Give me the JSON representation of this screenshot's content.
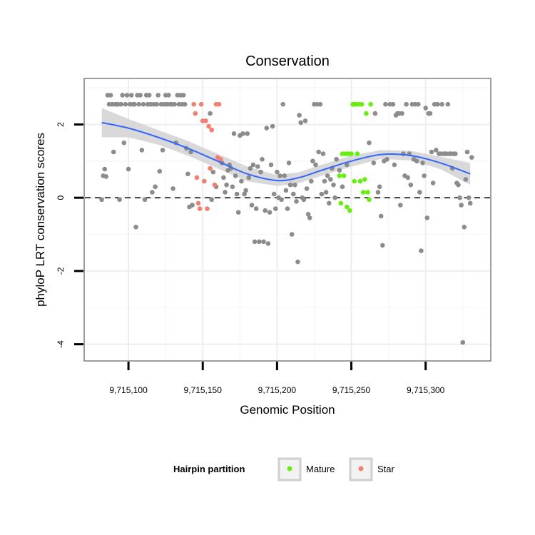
{
  "chart_data": {
    "type": "scatter",
    "title": "Conservation",
    "xlabel": "Genomic Position",
    "ylabel": "phyloP LRT conservation scores",
    "xlim": [
      9715075,
      9715340
    ],
    "ylim": [
      -4.3,
      3.1
    ],
    "x_ticks": [
      9715100,
      9715150,
      9715200,
      9715250,
      9715300
    ],
    "x_tick_labels": [
      "9,715,100",
      "9,715,150",
      "9,715,200",
      "9,715,250",
      "9,715,300"
    ],
    "y_ticks": [
      -4,
      -2,
      0,
      2
    ],
    "y_tick_labels": [
      "-4",
      "-2",
      "0",
      "2"
    ],
    "reference_line": {
      "y": 0,
      "style": "dashed"
    },
    "grid": true,
    "legend": {
      "title": "Hairpin partition",
      "position": "bottom",
      "entries": [
        {
          "label": "Mature",
          "color": "#66ee11"
        },
        {
          "label": "Star",
          "color": "#f08070"
        }
      ]
    },
    "colors": {
      "other": "#8c8c8c",
      "mature": "#66ee11",
      "star": "#f08070",
      "smooth": "#3366ff",
      "ribbon": "#d2d2d2"
    },
    "smooth": {
      "x": [
        9715082,
        9715100,
        9715120,
        9715140,
        9715160,
        9715180,
        9715200,
        9715215,
        9715230,
        9715250,
        9715270,
        9715290,
        9715310,
        9715330
      ],
      "y": [
        2.05,
        1.9,
        1.65,
        1.35,
        1.0,
        0.65,
        0.47,
        0.55,
        0.75,
        1.0,
        1.18,
        1.15,
        0.95,
        0.65
      ],
      "upper": [
        2.45,
        2.15,
        1.85,
        1.55,
        1.2,
        0.85,
        0.62,
        0.7,
        0.9,
        1.15,
        1.3,
        1.28,
        1.12,
        0.95
      ],
      "lower": [
        1.65,
        1.65,
        1.45,
        1.15,
        0.8,
        0.45,
        0.32,
        0.4,
        0.6,
        0.85,
        1.06,
        1.02,
        0.78,
        0.35
      ]
    },
    "series": [
      {
        "name": "Other",
        "points": [
          [
            9715082,
            -0.05
          ],
          [
            9715083,
            0.6
          ],
          [
            9715084,
            0.78
          ],
          [
            9715085,
            0.58
          ],
          [
            9715086,
            2.8
          ],
          [
            9715087,
            2.55
          ],
          [
            9715088,
            2.8
          ],
          [
            9715089,
            2.55
          ],
          [
            9715090,
            1.25
          ],
          [
            9715091,
            2.55
          ],
          [
            9715092,
            2.55
          ],
          [
            9715093,
            2.55
          ],
          [
            9715094,
            -0.05
          ],
          [
            9715095,
            2.55
          ],
          [
            9715096,
            2.8
          ],
          [
            9715097,
            1.5
          ],
          [
            9715098,
            2.55
          ],
          [
            9715099,
            2.8
          ],
          [
            9715100,
            0.78
          ],
          [
            9715101,
            2.55
          ],
          [
            9715102,
            2.8
          ],
          [
            9715103,
            2.55
          ],
          [
            9715104,
            2.55
          ],
          [
            9715105,
            -0.8
          ],
          [
            9715106,
            2.8
          ],
          [
            9715107,
            2.55
          ],
          [
            9715108,
            2.8
          ],
          [
            9715109,
            1.3
          ],
          [
            9715110,
            2.55
          ],
          [
            9715111,
            -0.05
          ],
          [
            9715112,
            2.8
          ],
          [
            9715113,
            2.55
          ],
          [
            9715114,
            2.8
          ],
          [
            9715115,
            2.55
          ],
          [
            9715116,
            0.15
          ],
          [
            9715117,
            2.55
          ],
          [
            9715118,
            0.3
          ],
          [
            9715119,
            2.55
          ],
          [
            9715120,
            2.8
          ],
          [
            9715121,
            0.72
          ],
          [
            9715122,
            2.55
          ],
          [
            9715123,
            1.3
          ],
          [
            9715124,
            2.55
          ],
          [
            9715125,
            2.8
          ],
          [
            9715126,
            2.55
          ],
          [
            9715127,
            2.8
          ],
          [
            9715128,
            2.55
          ],
          [
            9715129,
            2.55
          ],
          [
            9715130,
            0.25
          ],
          [
            9715131,
            2.55
          ],
          [
            9715132,
            1.5
          ],
          [
            9715133,
            2.8
          ],
          [
            9715134,
            2.55
          ],
          [
            9715135,
            2.8
          ],
          [
            9715136,
            2.55
          ],
          [
            9715137,
            2.8
          ],
          [
            9715138,
            2.55
          ],
          [
            9715139,
            1.35
          ],
          [
            9715140,
            0.65
          ],
          [
            9715141,
            -0.25
          ],
          [
            9715142,
            1.25
          ],
          [
            9715143,
            -0.2
          ],
          [
            9715155,
            2.3
          ],
          [
            9715156,
            -0.05
          ],
          [
            9715157,
            0.7
          ],
          [
            9715159,
            0.3
          ],
          [
            9715163,
            0.95
          ],
          [
            9715164,
            0.55
          ],
          [
            9715165,
            0.15
          ],
          [
            9715166,
            0.35
          ],
          [
            9715167,
            0.75
          ],
          [
            9715168,
            0.9
          ],
          [
            9715169,
            0.8
          ],
          [
            9715170,
            0.3
          ],
          [
            9715171,
            1.75
          ],
          [
            9715172,
            0.6
          ],
          [
            9715173,
            0.1
          ],
          [
            9715174,
            -0.4
          ],
          [
            9715175,
            1.7
          ],
          [
            9715176,
            0.45
          ],
          [
            9715177,
            1.75
          ],
          [
            9715178,
            0.1
          ],
          [
            9715179,
            0.2
          ],
          [
            9715180,
            1.75
          ],
          [
            9715181,
            0.55
          ],
          [
            9715182,
            0.8
          ],
          [
            9715183,
            -0.2
          ],
          [
            9715184,
            0.9
          ],
          [
            9715185,
            -1.2
          ],
          [
            9715186,
            -0.3
          ],
          [
            9715187,
            0.85
          ],
          [
            9715188,
            -1.2
          ],
          [
            9715189,
            0.7
          ],
          [
            9715190,
            1.05
          ],
          [
            9715191,
            -1.2
          ],
          [
            9715192,
            -0.35
          ],
          [
            9715193,
            1.9
          ],
          [
            9715194,
            -1.25
          ],
          [
            9715195,
            -0.4
          ],
          [
            9715196,
            0.9
          ],
          [
            9715197,
            1.95
          ],
          [
            9715198,
            0.1
          ],
          [
            9715199,
            -0.3
          ],
          [
            9715200,
            0.7
          ],
          [
            9715201,
            0.0
          ],
          [
            9715202,
            0.6
          ],
          [
            9715203,
            -0.05
          ],
          [
            9715204,
            2.55
          ],
          [
            9715205,
            0.6
          ],
          [
            9715206,
            0.2
          ],
          [
            9715207,
            -0.3
          ],
          [
            9715208,
            0.95
          ],
          [
            9715209,
            0.35
          ],
          [
            9715210,
            -1.0
          ],
          [
            9715211,
            0.1
          ],
          [
            9715212,
            0.35
          ],
          [
            9715213,
            -0.1
          ],
          [
            9715214,
            -1.75
          ],
          [
            9715215,
            2.25
          ],
          [
            9715216,
            2.05
          ],
          [
            9715217,
            0.0
          ],
          [
            9715218,
            -0.05
          ],
          [
            9715219,
            2.1
          ],
          [
            9715220,
            0.25
          ],
          [
            9715221,
            -0.45
          ],
          [
            9715222,
            -0.55
          ],
          [
            9715223,
            0.45
          ],
          [
            9715224,
            1.0
          ],
          [
            9715225,
            2.55
          ],
          [
            9715226,
            0.9
          ],
          [
            9715227,
            2.55
          ],
          [
            9715228,
            1.25
          ],
          [
            9715229,
            2.55
          ],
          [
            9715230,
            0.1
          ],
          [
            9715231,
            1.2
          ],
          [
            9715232,
            0.45
          ],
          [
            9715233,
            0.15
          ],
          [
            9715234,
            0.6
          ],
          [
            9715235,
            -0.15
          ],
          [
            9715236,
            0.5
          ],
          [
            9715237,
            0.8
          ],
          [
            9715238,
            0.35
          ],
          [
            9715239,
            0.0
          ],
          [
            9715240,
            1.05
          ],
          [
            9715242,
            0.75
          ],
          [
            9715244,
            0.3
          ],
          [
            9715247,
            0.9
          ],
          [
            9715252,
            2.55
          ],
          [
            9715262,
            1.5
          ],
          [
            9715265,
            0.95
          ],
          [
            9715266,
            2.3
          ],
          [
            9715268,
            0.15
          ],
          [
            9715269,
            0.3
          ],
          [
            9715270,
            -0.5
          ],
          [
            9715271,
            -1.3
          ],
          [
            9715272,
            1.0
          ],
          [
            9715273,
            2.55
          ],
          [
            9715274,
            1.05
          ],
          [
            9715276,
            2.55
          ],
          [
            9715278,
            2.55
          ],
          [
            9715279,
            0.9
          ],
          [
            9715280,
            2.25
          ],
          [
            9715281,
            2.3
          ],
          [
            9715282,
            2.3
          ],
          [
            9715283,
            -0.2
          ],
          [
            9715284,
            2.3
          ],
          [
            9715285,
            1.2
          ],
          [
            9715286,
            0.6
          ],
          [
            9715287,
            2.55
          ],
          [
            9715288,
            0.55
          ],
          [
            9715289,
            1.2
          ],
          [
            9715290,
            0.35
          ],
          [
            9715291,
            2.55
          ],
          [
            9715292,
            1.05
          ],
          [
            9715293,
            2.55
          ],
          [
            9715294,
            1.0
          ],
          [
            9715295,
            2.55
          ],
          [
            9715296,
            0.15
          ],
          [
            9715297,
            -1.45
          ],
          [
            9715298,
            0.95
          ],
          [
            9715299,
            0.6
          ],
          [
            9715300,
            2.45
          ],
          [
            9715301,
            -0.55
          ],
          [
            9715302,
            2.3
          ],
          [
            9715303,
            2.3
          ],
          [
            9715304,
            1.25
          ],
          [
            9715305,
            0.4
          ],
          [
            9715306,
            2.55
          ],
          [
            9715307,
            1.3
          ],
          [
            9715308,
            2.55
          ],
          [
            9715309,
            1.2
          ],
          [
            9715310,
            1.2
          ],
          [
            9715311,
            2.55
          ],
          [
            9715312,
            1.2
          ],
          [
            9715313,
            1.2
          ],
          [
            9715314,
            1.2
          ],
          [
            9715315,
            2.55
          ],
          [
            9715316,
            1.2
          ],
          [
            9715317,
            1.2
          ],
          [
            9715318,
            0.8
          ],
          [
            9715319,
            1.2
          ],
          [
            9715320,
            1.2
          ],
          [
            9715321,
            0.4
          ],
          [
            9715322,
            0.35
          ],
          [
            9715323,
            0.0
          ],
          [
            9715324,
            -0.2
          ],
          [
            9715325,
            -3.95
          ],
          [
            9715326,
            -0.8
          ],
          [
            9715327,
            0.5
          ],
          [
            9715328,
            1.25
          ],
          [
            9715329,
            0.0
          ],
          [
            9715330,
            -0.15
          ],
          [
            9715331,
            1.1
          ]
        ]
      },
      {
        "name": "Mature",
        "points": [
          [
            9715242,
            0.6
          ],
          [
            9715243,
            -0.15
          ],
          [
            9715244,
            1.2
          ],
          [
            9715245,
            0.6
          ],
          [
            9715246,
            1.2
          ],
          [
            9715247,
            -0.25
          ],
          [
            9715248,
            1.2
          ],
          [
            9715249,
            -0.35
          ],
          [
            9715250,
            1.2
          ],
          [
            9715251,
            2.55
          ],
          [
            9715252,
            0.45
          ],
          [
            9715253,
            2.55
          ],
          [
            9715254,
            1.2
          ],
          [
            9715255,
            2.55
          ],
          [
            9715256,
            0.45
          ],
          [
            9715257,
            2.55
          ],
          [
            9715258,
            0.15
          ],
          [
            9715259,
            0.5
          ],
          [
            9715260,
            2.3
          ],
          [
            9715261,
            0.15
          ],
          [
            9715262,
            -0.05
          ],
          [
            9715263,
            2.55
          ]
        ]
      },
      {
        "name": "Star",
        "points": [
          [
            9715144,
            2.55
          ],
          [
            9715145,
            2.3
          ],
          [
            9715146,
            0.55
          ],
          [
            9715147,
            -0.15
          ],
          [
            9715148,
            -0.3
          ],
          [
            9715149,
            2.55
          ],
          [
            9715150,
            2.1
          ],
          [
            9715151,
            0.45
          ],
          [
            9715152,
            2.1
          ],
          [
            9715153,
            -0.3
          ],
          [
            9715154,
            1.95
          ],
          [
            9715155,
            0.8
          ],
          [
            9715156,
            1.85
          ],
          [
            9715158,
            0.35
          ],
          [
            9715159,
            2.55
          ],
          [
            9715160,
            1.1
          ],
          [
            9715161,
            2.55
          ],
          [
            9715162,
            1.05
          ]
        ]
      }
    ]
  }
}
